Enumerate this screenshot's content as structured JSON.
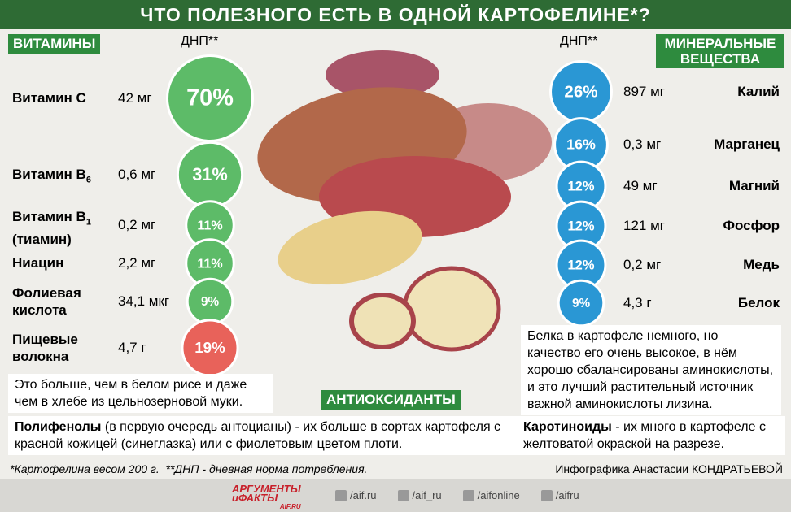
{
  "header": {
    "title": "ЧТО ПОЛЕЗНОГО ЕСТЬ В ОДНОЙ КАРТОФЕЛИНЕ*?"
  },
  "vitamins": {
    "label": "ВИТАМИНЫ",
    "dnp_label": "ДНП**",
    "rows": [
      {
        "name": "Витамин С",
        "amount": "42 мг",
        "dnp": "70%"
      },
      {
        "name": "Витамин B",
        "sub": "6",
        "amount": "0,6 мг",
        "dnp": "31%"
      },
      {
        "name": "Витамин B",
        "sub": "1",
        "name2": "(тиамин)",
        "amount": "0,2 мг",
        "dnp": "11%"
      },
      {
        "name": "Ниацин",
        "amount": "2,2 мг",
        "dnp": "11%"
      },
      {
        "name": "Фолиевая",
        "name2": "кислота",
        "amount": "34,1 мкг",
        "dnp": "9%"
      },
      {
        "name": "Пищевые",
        "name2": "волокна",
        "amount": "4,7 г",
        "dnp": "19%"
      }
    ],
    "note": "Это больше, чем в белом рисе и даже чем в хлебе из цельнозерновой муки."
  },
  "minerals": {
    "label": "МИНЕРАЛЬНЫЕ ВЕЩЕСТВА",
    "dnp_label": "ДНП**",
    "rows": [
      {
        "name": "Калий",
        "amount": "897 мг",
        "dnp": "26%"
      },
      {
        "name": "Марганец",
        "amount": "0,3 мг",
        "dnp": "16%"
      },
      {
        "name": "Магний",
        "amount": "49 мг",
        "dnp": "12%"
      },
      {
        "name": "Фосфор",
        "amount": "121 мг",
        "dnp": "12%"
      },
      {
        "name": "Медь",
        "amount": "0,2 мг",
        "dnp": "12%"
      },
      {
        "name": "Белок",
        "amount": "4,3 г",
        "dnp": "9%"
      }
    ],
    "note": "Белка в картофеле немного, но качество его очень высокое, в нём хорошо сбалансированы аминокислоты, и это лучший растительный источник важной аминокислоты лизина."
  },
  "antioxidants": {
    "label": "АНТИОКСИДАНТЫ",
    "polyphenols": {
      "term": "Полифенолы",
      "text": " (в первую очередь антоцианы) - их больше в сортах картофеля с красной кожицей (синеглазка) или с фиолетовым цветом плоти."
    },
    "carotenoids": {
      "term": "Каротиноиды",
      "text": " - их много в картофеле с желтоватой окраской на разрезе."
    }
  },
  "footer": {
    "note": "*Картофелина весом 200 г.  **ДНП - дневная норма потребления.",
    "credit": "Инфографика Анастасии КОНДРАТЬЕВОЙ",
    "logo": [
      "АРГУМЕНТЫ",
      "иФАКТЫ",
      "AIF.RU"
    ],
    "socials": [
      "/aif.ru",
      "/aif_ru",
      "/aifonline",
      "/aifru"
    ]
  }
}
